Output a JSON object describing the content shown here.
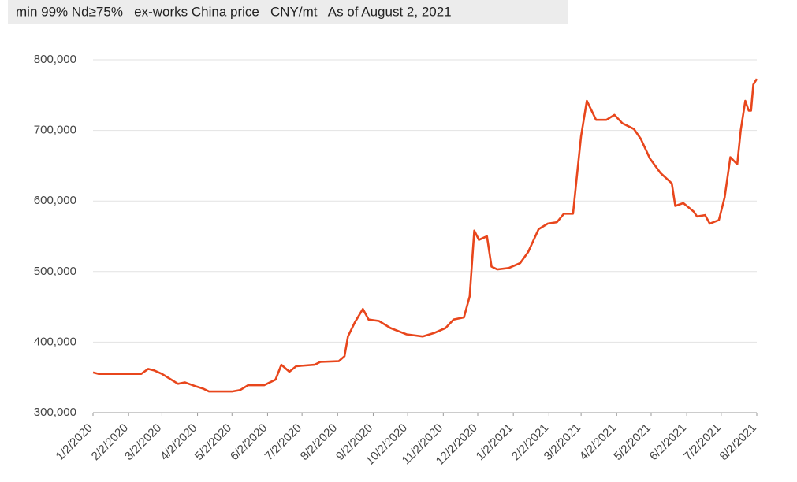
{
  "chart_data": {
    "type": "line",
    "subtitle": "min 99% Nd≥75%   ex-works China price   CNY/mt   As of August 2, 2021",
    "x": [
      "1/2/2020",
      "1/7/2020",
      "2/13/2020",
      "2/19/2020",
      "2/24/2020",
      "3/2/2020",
      "3/9/2020",
      "3/16/2020",
      "3/22/2020",
      "4/1/2020",
      "4/7/2020",
      "4/12/2020",
      "5/2/2020",
      "5/9/2020",
      "5/16/2020",
      "5/30/2020",
      "6/9/2020",
      "6/14/2020",
      "6/21/2020",
      "6/27/2020",
      "7/13/2020",
      "7/18/2020",
      "8/3/2020",
      "8/8/2020",
      "8/11/2020",
      "8/17/2020",
      "8/24/2020",
      "8/29/2020",
      "9/7/2020",
      "9/17/2020",
      "10/1/2020",
      "10/15/2020",
      "10/25/2020",
      "11/4/2020",
      "11/11/2020",
      "11/20/2020",
      "11/25/2020",
      "11/29/2020",
      "12/3/2020",
      "12/10/2020",
      "12/14/2020",
      "12/19/2020",
      "12/29/2020",
      "1/8/2021",
      "1/15/2021",
      "1/24/2021",
      "2/1/2021",
      "2/9/2021",
      "2/15/2021",
      "2/23/2021",
      "2/26/2021",
      "3/2/2021",
      "3/7/2021",
      "3/15/2021",
      "3/24/2021",
      "3/31/2021",
      "4/7/2021",
      "4/17/2021",
      "4/23/2021",
      "5/1/2021",
      "5/10/2021",
      "5/20/2021",
      "5/23/2021",
      "5/30/2021",
      "6/8/2021",
      "6/11/2021",
      "6/18/2021",
      "6/22/2021",
      "6/30/2021",
      "7/5/2021",
      "7/10/2021",
      "7/16/2021",
      "7/19/2021",
      "7/23/2021",
      "7/26/2021",
      "7/28/2021",
      "7/30/2021",
      "8/2/2021"
    ],
    "series": [
      {
        "name": "price",
        "color": "#e8461c",
        "values": [
          357000,
          355000,
          355000,
          362000,
          360000,
          355000,
          348000,
          341000,
          343000,
          337000,
          334000,
          330000,
          330000,
          332000,
          339000,
          339000,
          347000,
          368000,
          358000,
          366000,
          368000,
          372000,
          373000,
          380000,
          408000,
          428000,
          447000,
          432000,
          430000,
          420000,
          411000,
          408000,
          413000,
          420000,
          432000,
          435000,
          465000,
          558000,
          545000,
          550000,
          507000,
          503000,
          505000,
          512000,
          528000,
          560000,
          568000,
          570000,
          582000,
          582000,
          630000,
          692000,
          742000,
          715000,
          715000,
          722000,
          710000,
          702000,
          688000,
          660000,
          640000,
          625000,
          593000,
          597000,
          585000,
          578000,
          580000,
          568000,
          573000,
          605000,
          662000,
          652000,
          700000,
          742000,
          728000,
          728000,
          765000,
          773000
        ]
      }
    ],
    "xlim": [
      "1/2/2020",
      "8/2/2021"
    ],
    "xticks": [
      "1/2/2020",
      "2/2/2020",
      "3/2/2020",
      "4/2/2020",
      "5/2/2020",
      "6/2/2020",
      "7/2/2020",
      "8/2/2020",
      "9/2/2020",
      "10/2/2020",
      "11/2/2020",
      "12/2/2020",
      "1/2/2021",
      "2/2/2021",
      "3/2/2021",
      "4/2/2021",
      "5/2/2021",
      "6/2/2021",
      "7/2/2021",
      "8/2/2021"
    ],
    "ylim": [
      300000,
      800000
    ],
    "yticks": [
      {
        "value": 300000,
        "label": "300,000"
      },
      {
        "value": 400000,
        "label": "400,000"
      },
      {
        "value": 500000,
        "label": "500,000"
      },
      {
        "value": 600000,
        "label": "600,000"
      },
      {
        "value": 700000,
        "label": "700,000"
      },
      {
        "value": 800000,
        "label": "800,000"
      }
    ],
    "grid": true
  }
}
